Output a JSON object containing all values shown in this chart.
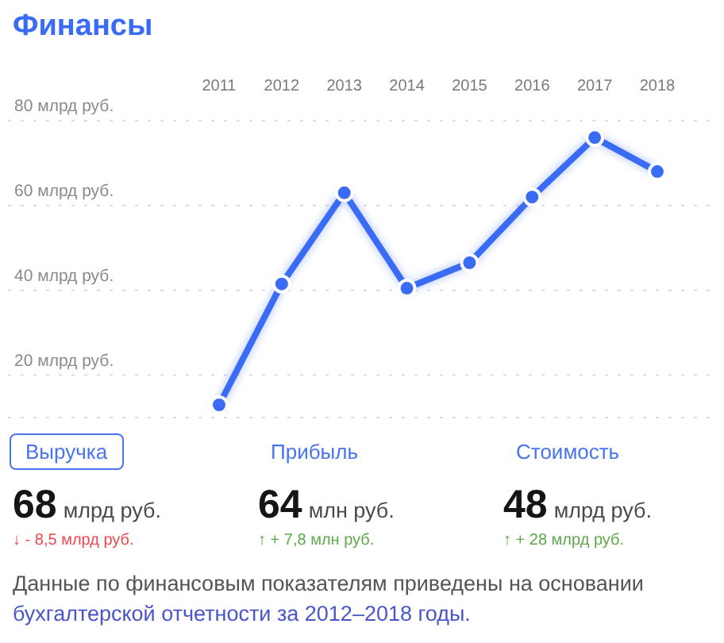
{
  "chart_data": [
    {
      "type": "line",
      "title": "Финансы",
      "categories": [
        "2011",
        "2012",
        "2013",
        "2014",
        "2015",
        "2016",
        "2017",
        "2018"
      ],
      "series": [
        {
          "color": "#3a6bf5",
          "values": [
            13,
            41.5,
            63,
            40.5,
            46.5,
            62,
            76,
            68
          ]
        }
      ],
      "ylim": [
        10,
        80
      ],
      "yticks": [
        {
          "value": 20,
          "label": "20 млрд руб."
        },
        {
          "value": 40,
          "label": "40 млрд руб."
        },
        {
          "value": 60,
          "label": "60 млрд руб."
        },
        {
          "value": 80,
          "label": "80 млрд руб."
        }
      ],
      "grid": "y",
      "marker": "circle",
      "line_style": "solid"
    },
    {
      "type": "other",
      "categories": [
        "Выручка",
        "Прибыль",
        "Стоимость"
      ],
      "values": [
        68,
        64,
        48
      ],
      "data_labels": true,
      "colors": [
        "#f0484e",
        "#5fa84a",
        "#5fa84a"
      ],
      "annotations": [
        "млрд руб.",
        "млн руб.",
        "млрд руб.",
        "↓ - 8,5 млрд руб.",
        "↑ + 7,8 млн руб.",
        "↑ + 28 млрд руб.",
        "Данные по финансовым показателям приведены на основании",
        "бухгалтерской отчетности за 2012–2018 годы."
      ]
    }
  ]
}
